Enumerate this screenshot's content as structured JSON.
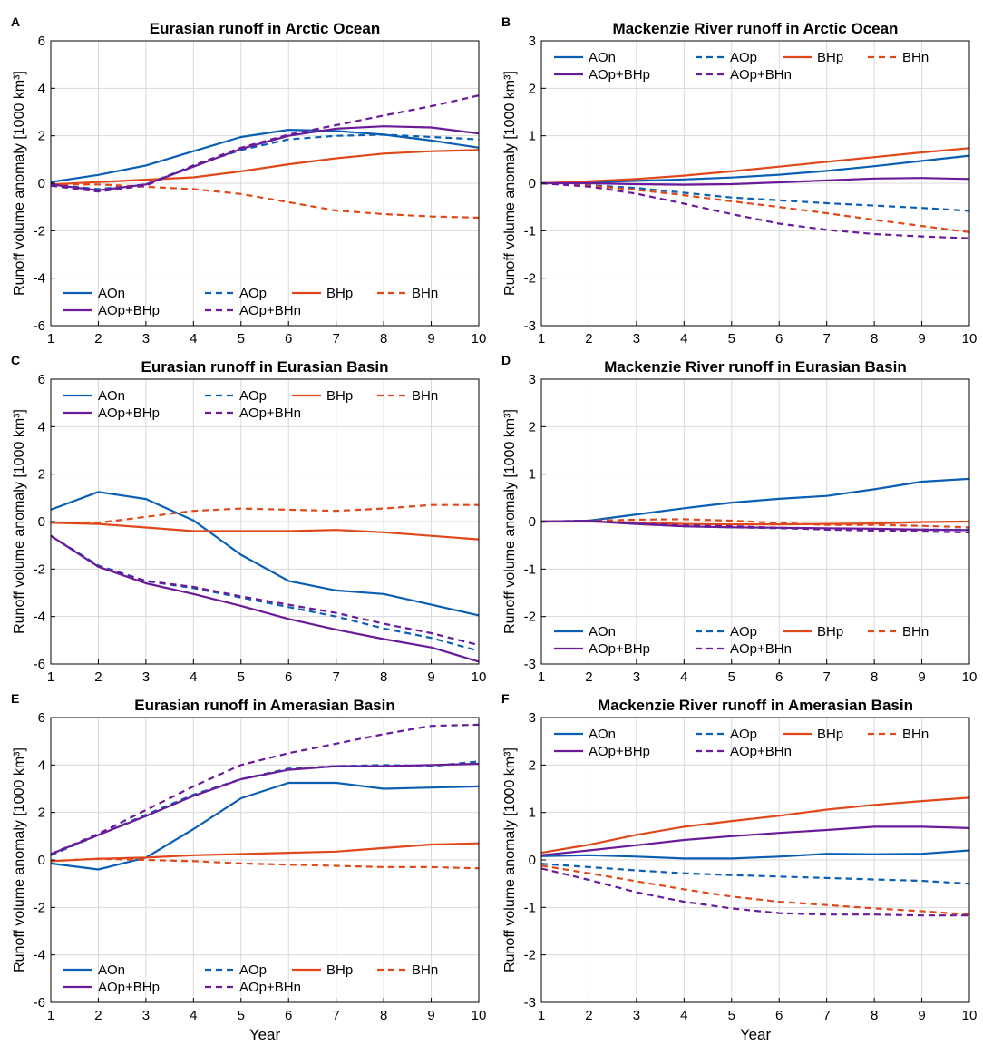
{
  "figure": {
    "common_xlabel": "Year"
  },
  "colors": {
    "AO": "#0a5fb4",
    "BH": "#e0481a",
    "AOBH": "#6a1b9a",
    "grid": "#d9d9d9",
    "axis": "#000000"
  },
  "chart_data": [
    {
      "panel": "A",
      "type": "line",
      "title": "Eurasian runoff in Arctic Ocean",
      "xlabel": "",
      "ylabel": "Runoff volume anomaly [1000 km³]",
      "x": [
        1,
        2,
        3,
        4,
        5,
        6,
        7,
        8,
        9,
        10
      ],
      "xlim": [
        1,
        10
      ],
      "ylim": [
        -6,
        6
      ],
      "yticks": [
        -6,
        -4,
        -2,
        0,
        2,
        4,
        6
      ],
      "legend_position": "bottom-left",
      "series": [
        {
          "name": "AOn",
          "color_key": "AO",
          "dash": false,
          "values": [
            0.05,
            0.35,
            0.75,
            1.35,
            1.95,
            2.25,
            2.2,
            2.05,
            1.8,
            1.5
          ]
        },
        {
          "name": "AOp",
          "color_key": "AO",
          "dash": true,
          "values": [
            -0.05,
            -0.25,
            -0.05,
            0.75,
            1.4,
            1.85,
            2.0,
            2.05,
            1.95,
            1.85
          ]
        },
        {
          "name": "BHp",
          "color_key": "BH",
          "dash": false,
          "values": [
            -0.05,
            0.05,
            0.15,
            0.25,
            0.5,
            0.8,
            1.05,
            1.25,
            1.35,
            1.4
          ]
        },
        {
          "name": "BHn",
          "color_key": "BH",
          "dash": true,
          "values": [
            -0.05,
            -0.05,
            -0.15,
            -0.25,
            -0.45,
            -0.8,
            -1.15,
            -1.3,
            -1.4,
            -1.45
          ]
        },
        {
          "name": "AOp+BHp",
          "color_key": "AOBH",
          "dash": false,
          "values": [
            -0.05,
            -0.3,
            -0.05,
            0.7,
            1.45,
            2.0,
            2.3,
            2.4,
            2.35,
            2.1
          ]
        },
        {
          "name": "AOp+BHn",
          "color_key": "AOBH",
          "dash": true,
          "values": [
            -0.1,
            -0.35,
            -0.1,
            0.75,
            1.5,
            2.05,
            2.45,
            2.85,
            3.25,
            3.7
          ]
        }
      ]
    },
    {
      "panel": "B",
      "type": "line",
      "title": "Mackenzie River runoff in Arctic Ocean",
      "xlabel": "",
      "ylabel": "Runoff volume anomaly [1000 km³]",
      "x": [
        1,
        2,
        3,
        4,
        5,
        6,
        7,
        8,
        9,
        10
      ],
      "xlim": [
        1,
        10
      ],
      "ylim": [
        -3,
        3
      ],
      "yticks": [
        -3,
        -2,
        -1,
        0,
        1,
        2,
        3
      ],
      "legend_position": "top",
      "series": [
        {
          "name": "AOn",
          "color_key": "AO",
          "dash": false,
          "values": [
            0,
            0.02,
            0.05,
            0.08,
            0.12,
            0.18,
            0.26,
            0.36,
            0.47,
            0.58
          ]
        },
        {
          "name": "AOp",
          "color_key": "AO",
          "dash": true,
          "values": [
            0,
            -0.04,
            -0.1,
            -0.2,
            -0.3,
            -0.36,
            -0.42,
            -0.47,
            -0.52,
            -0.58
          ]
        },
        {
          "name": "BHp",
          "color_key": "BH",
          "dash": false,
          "values": [
            0,
            0.04,
            0.09,
            0.16,
            0.25,
            0.35,
            0.45,
            0.55,
            0.65,
            0.74
          ]
        },
        {
          "name": "BHn",
          "color_key": "BH",
          "dash": true,
          "values": [
            0,
            -0.05,
            -0.14,
            -0.25,
            -0.38,
            -0.5,
            -0.63,
            -0.77,
            -0.9,
            -1.03
          ]
        },
        {
          "name": "AOp+BHp",
          "color_key": "AOBH",
          "dash": false,
          "values": [
            0,
            0,
            -0.02,
            -0.03,
            -0.02,
            0.02,
            0.06,
            0.1,
            0.11,
            0.09
          ]
        },
        {
          "name": "AOp+BHn",
          "color_key": "AOBH",
          "dash": true,
          "values": [
            0,
            -0.07,
            -0.22,
            -0.43,
            -0.65,
            -0.85,
            -0.98,
            -1.07,
            -1.12,
            -1.16
          ]
        }
      ]
    },
    {
      "panel": "C",
      "type": "line",
      "title": "Eurasian runoff in Eurasian Basin",
      "xlabel": "",
      "ylabel": "Runoff volume anomaly [1000 km³]",
      "x": [
        1,
        2,
        3,
        4,
        5,
        6,
        7,
        8,
        9,
        10
      ],
      "xlim": [
        1,
        10
      ],
      "ylim": [
        -6,
        6
      ],
      "yticks": [
        -6,
        -4,
        -2,
        0,
        2,
        4,
        6
      ],
      "legend_position": "top",
      "series": [
        {
          "name": "AOn",
          "color_key": "AO",
          "dash": false,
          "values": [
            0.5,
            1.25,
            0.95,
            0.05,
            -1.4,
            -2.5,
            -2.9,
            -3.05,
            -3.5,
            -3.95
          ]
        },
        {
          "name": "AOp",
          "color_key": "AO",
          "dash": true,
          "values": [
            -0.6,
            -1.85,
            -2.5,
            -2.8,
            -3.2,
            -3.6,
            -4.0,
            -4.5,
            -4.9,
            -5.45
          ]
        },
        {
          "name": "BHp",
          "color_key": "BH",
          "dash": false,
          "values": [
            -0.05,
            -0.1,
            -0.25,
            -0.4,
            -0.4,
            -0.4,
            -0.35,
            -0.45,
            -0.6,
            -0.75
          ]
        },
        {
          "name": "BHn",
          "color_key": "BH",
          "dash": true,
          "values": [
            -0.05,
            -0.05,
            0.2,
            0.45,
            0.55,
            0.5,
            0.45,
            0.55,
            0.7,
            0.7
          ]
        },
        {
          "name": "AOp+BHp",
          "color_key": "AOBH",
          "dash": false,
          "values": [
            -0.6,
            -1.9,
            -2.6,
            -3.05,
            -3.55,
            -4.1,
            -4.55,
            -4.95,
            -5.3,
            -5.9
          ]
        },
        {
          "name": "AOp+BHn",
          "color_key": "AOBH",
          "dash": true,
          "values": [
            -0.6,
            -1.9,
            -2.5,
            -2.75,
            -3.15,
            -3.5,
            -3.85,
            -4.3,
            -4.7,
            -5.2
          ]
        }
      ]
    },
    {
      "panel": "D",
      "type": "line",
      "title": "Mackenzie River runoff in Eurasian Basin",
      "xlabel": "",
      "ylabel": "Runoff volume anomaly [1000 km³]",
      "x": [
        1,
        2,
        3,
        4,
        5,
        6,
        7,
        8,
        9,
        10
      ],
      "xlim": [
        1,
        10
      ],
      "ylim": [
        -3,
        3
      ],
      "yticks": [
        -3,
        -2,
        -1,
        0,
        1,
        2,
        3
      ],
      "legend_position": "bottom",
      "series": [
        {
          "name": "AOn",
          "color_key": "AO",
          "dash": false,
          "values": [
            0,
            0.02,
            0.15,
            0.28,
            0.4,
            0.48,
            0.54,
            0.68,
            0.84,
            0.9
          ]
        },
        {
          "name": "AOp",
          "color_key": "AO",
          "dash": true,
          "values": [
            0,
            0.01,
            -0.05,
            -0.1,
            -0.12,
            -0.14,
            -0.16,
            -0.17,
            -0.17,
            -0.17
          ]
        },
        {
          "name": "BHp",
          "color_key": "BH",
          "dash": false,
          "values": [
            0,
            0,
            -0.02,
            -0.05,
            -0.06,
            -0.06,
            -0.05,
            -0.04,
            -0.01,
            0
          ]
        },
        {
          "name": "BHn",
          "color_key": "BH",
          "dash": true,
          "values": [
            0,
            0.02,
            0.04,
            0.05,
            0.02,
            -0.03,
            -0.07,
            -0.07,
            -0.09,
            -0.12
          ]
        },
        {
          "name": "AOp+BHp",
          "color_key": "AOBH",
          "dash": false,
          "values": [
            0,
            0.01,
            -0.05,
            -0.1,
            -0.12,
            -0.13,
            -0.14,
            -0.15,
            -0.17,
            -0.18
          ]
        },
        {
          "name": "AOp+BHn",
          "color_key": "AOBH",
          "dash": true,
          "values": [
            0,
            0.02,
            -0.04,
            -0.08,
            -0.1,
            -0.13,
            -0.17,
            -0.19,
            -0.21,
            -0.23
          ]
        }
      ]
    },
    {
      "panel": "E",
      "type": "line",
      "title": "Eurasian runoff in Amerasian Basin",
      "xlabel": "Year",
      "ylabel": "Runoff volume anomaly [1000 km³]",
      "x": [
        1,
        2,
        3,
        4,
        5,
        6,
        7,
        8,
        9,
        10
      ],
      "xlim": [
        1,
        10
      ],
      "ylim": [
        -6,
        6
      ],
      "yticks": [
        -6,
        -4,
        -2,
        0,
        2,
        4,
        6
      ],
      "legend_position": "bottom",
      "series": [
        {
          "name": "AOn",
          "color_key": "AO",
          "dash": false,
          "values": [
            -0.15,
            -0.4,
            0.1,
            1.3,
            2.6,
            3.25,
            3.25,
            3.0,
            3.05,
            3.1
          ]
        },
        {
          "name": "AOp",
          "color_key": "AO",
          "dash": true,
          "values": [
            0.2,
            1.05,
            1.9,
            2.75,
            3.4,
            3.85,
            3.95,
            4.0,
            3.95,
            4.15
          ]
        },
        {
          "name": "BHp",
          "color_key": "BH",
          "dash": false,
          "values": [
            -0.05,
            0.05,
            0.1,
            0.2,
            0.25,
            0.3,
            0.35,
            0.5,
            0.65,
            0.7
          ]
        },
        {
          "name": "BHn",
          "color_key": "BH",
          "dash": true,
          "values": [
            -0.05,
            0.05,
            0,
            -0.05,
            -0.15,
            -0.2,
            -0.25,
            -0.3,
            -0.3,
            -0.35
          ]
        },
        {
          "name": "AOp+BHp",
          "color_key": "AOBH",
          "dash": false,
          "values": [
            0.25,
            1.05,
            1.85,
            2.7,
            3.4,
            3.8,
            3.95,
            3.95,
            4.0,
            4.05
          ]
        },
        {
          "name": "AOp+BHn",
          "color_key": "AOBH",
          "dash": true,
          "values": [
            0.25,
            1.1,
            2.1,
            3.1,
            4.0,
            4.5,
            4.9,
            5.3,
            5.65,
            5.7
          ]
        }
      ]
    },
    {
      "panel": "F",
      "type": "line",
      "title": "Mackenzie River runoff in Amerasian Basin",
      "xlabel": "Year",
      "ylabel": "Runoff volume anomaly [1000 km³]",
      "x": [
        1,
        2,
        3,
        4,
        5,
        6,
        7,
        8,
        9,
        10
      ],
      "xlim": [
        1,
        10
      ],
      "ylim": [
        -3,
        3
      ],
      "yticks": [
        -3,
        -2,
        -1,
        0,
        1,
        2,
        3
      ],
      "legend_position": "top",
      "series": [
        {
          "name": "AOn",
          "color_key": "AO",
          "dash": false,
          "values": [
            0.08,
            0.1,
            0.07,
            0.03,
            0.03,
            0.07,
            0.13,
            0.12,
            0.13,
            0.2
          ]
        },
        {
          "name": "AOp",
          "color_key": "AO",
          "dash": true,
          "values": [
            -0.08,
            -0.15,
            -0.22,
            -0.28,
            -0.32,
            -0.35,
            -0.38,
            -0.41,
            -0.44,
            -0.5
          ]
        },
        {
          "name": "BHp",
          "color_key": "BH",
          "dash": false,
          "values": [
            0.15,
            0.32,
            0.53,
            0.7,
            0.82,
            0.93,
            1.06,
            1.16,
            1.24,
            1.31
          ]
        },
        {
          "name": "BHn",
          "color_key": "BH",
          "dash": true,
          "values": [
            -0.12,
            -0.28,
            -0.45,
            -0.62,
            -0.77,
            -0.88,
            -0.95,
            -1.02,
            -1.08,
            -1.15
          ]
        },
        {
          "name": "AOp+BHp",
          "color_key": "AOBH",
          "dash": false,
          "values": [
            0.1,
            0.2,
            0.31,
            0.42,
            0.5,
            0.57,
            0.63,
            0.7,
            0.7,
            0.67
          ]
        },
        {
          "name": "AOp+BHn",
          "color_key": "AOBH",
          "dash": true,
          "values": [
            -0.18,
            -0.42,
            -0.68,
            -0.88,
            -1.02,
            -1.12,
            -1.15,
            -1.15,
            -1.17,
            -1.17
          ]
        }
      ]
    }
  ]
}
